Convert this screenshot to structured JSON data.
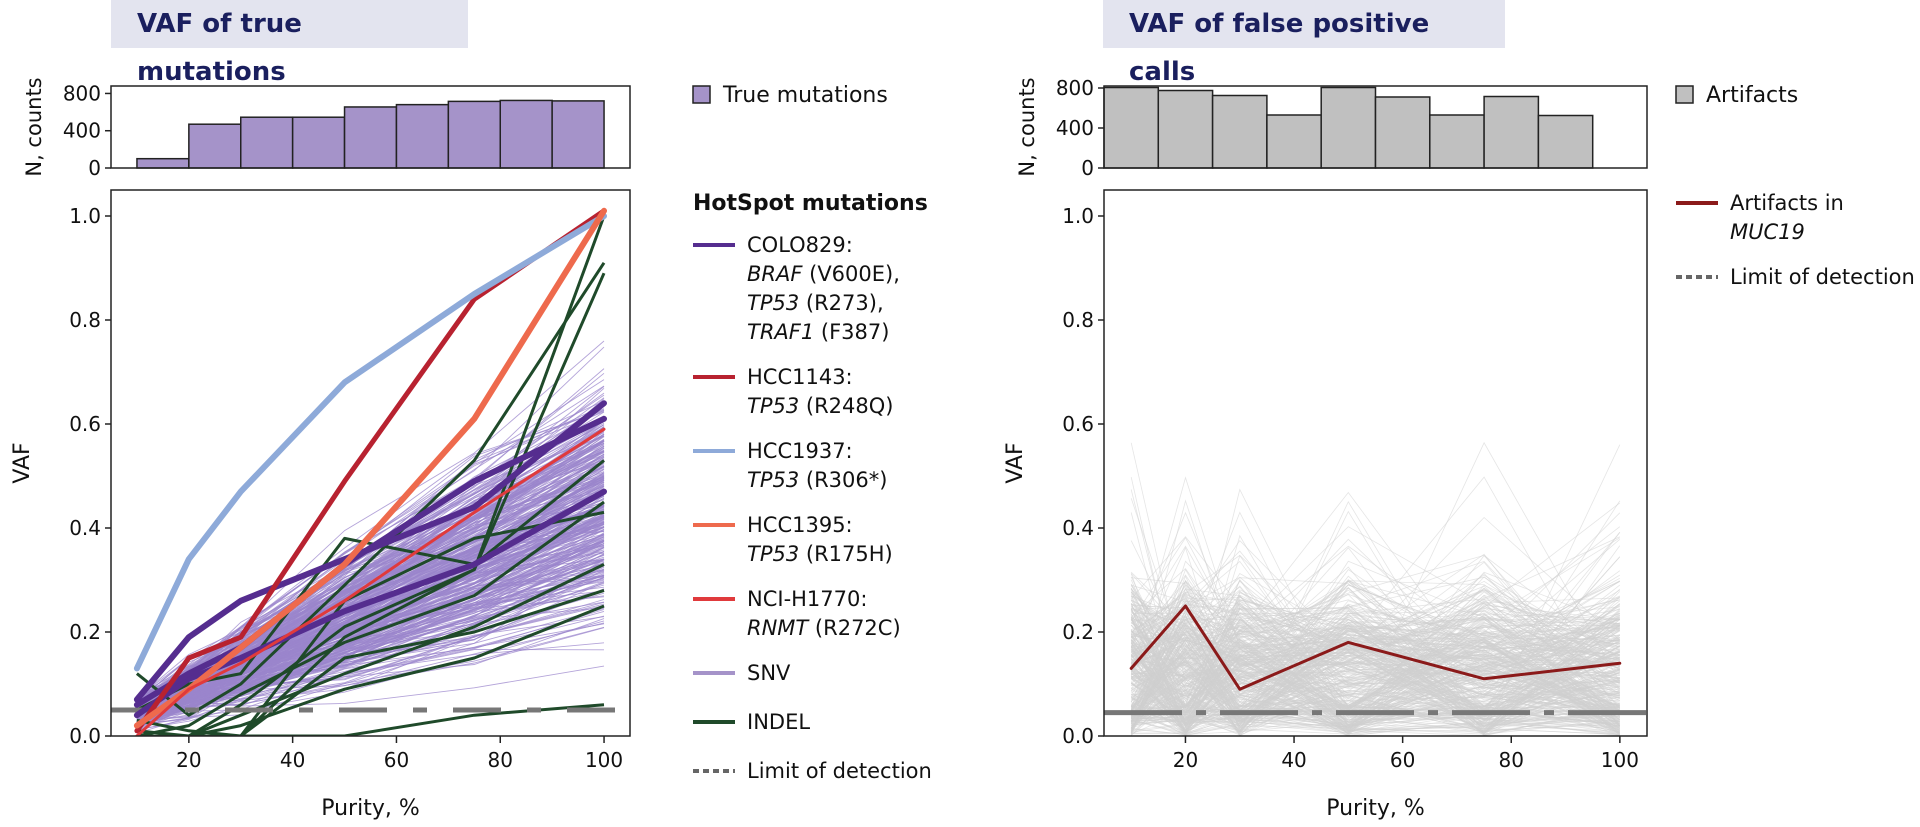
{
  "panels": {
    "left": {
      "title": "VAF of true mutations"
    },
    "right": {
      "title": "VAF of false positive calls"
    }
  },
  "chart_data": [
    {
      "type": "bar",
      "panel": "left-top",
      "ylabel": "N, counts",
      "yticks": [
        0,
        400,
        800
      ],
      "ylim": [
        0,
        880
      ],
      "xlim": [
        5,
        105
      ],
      "bar_x": [
        15,
        25,
        35,
        45,
        55,
        65,
        75,
        85,
        95
      ],
      "bar_width": 10,
      "values": [
        100,
        470,
        545,
        545,
        655,
        680,
        715,
        725,
        720
      ],
      "legend": "True mutations",
      "color": "#a593c9"
    },
    {
      "type": "line",
      "panel": "left-main",
      "xlabel": "Purity, %",
      "ylabel": "VAF",
      "xlim": [
        5,
        105
      ],
      "ylim": [
        0,
        1.05
      ],
      "xticks": [
        20,
        40,
        60,
        80,
        100
      ],
      "yticks": [
        0.0,
        0.2,
        0.4,
        0.6,
        0.8,
        1.0
      ],
      "ytick_labels": [
        "0.0",
        "0.2",
        "0.4",
        "0.6",
        "0.8",
        "1.0"
      ],
      "x": [
        10,
        20,
        30,
        50,
        75,
        100
      ],
      "legend_title": "HotSpot mutations",
      "series": [
        {
          "name": "COLO829: BRAF (V600E)",
          "color": "#552d8f",
          "width": 6,
          "values": [
            0.07,
            0.19,
            0.26,
            0.34,
            0.44,
            0.64
          ]
        },
        {
          "name": "COLO829: TP53 (R273)",
          "color": "#552d8f",
          "width": 6,
          "values": [
            0.04,
            0.11,
            0.15,
            0.24,
            0.33,
            0.47
          ]
        },
        {
          "name": "COLO829: TRAF1 (F387)",
          "color": "#552d8f",
          "width": 6,
          "values": [
            0.06,
            0.12,
            0.17,
            0.33,
            0.49,
            0.61
          ]
        },
        {
          "name": "HCC1143: TP53 (R248Q)",
          "color": "#b82230",
          "width": 5,
          "values": [
            0.01,
            0.15,
            0.19,
            0.49,
            0.84,
            1.01
          ]
        },
        {
          "name": "HCC1937: TP53 (R306*)",
          "color": "#8eaad9",
          "width": 6,
          "values": [
            0.13,
            0.34,
            0.47,
            0.68,
            0.85,
            1.0
          ]
        },
        {
          "name": "HCC1395: TP53 (R175H)",
          "color": "#ee6a4d",
          "width": 6,
          "values": [
            0.02,
            0.09,
            0.17,
            0.33,
            0.61,
            1.01
          ]
        },
        {
          "name": "NCI-H1770: RNMT (R272C)",
          "color": "#e03a3c",
          "width": 3,
          "values": [
            0.0,
            0.09,
            0.14,
            0.26,
            0.43,
            0.59
          ]
        }
      ],
      "indel_series": [
        [
          0.0,
          0.0,
          0.06,
          0.21,
          0.32,
          1.0
        ],
        [
          0.12,
          0.04,
          0.1,
          0.29,
          0.53,
          0.91
        ],
        [
          0.0,
          0.0,
          0.0,
          0.19,
          0.32,
          0.89
        ],
        [
          0.05,
          0.1,
          0.12,
          0.38,
          0.33,
          0.53
        ],
        [
          0.0,
          0.02,
          0.08,
          0.18,
          0.27,
          0.45
        ],
        [
          0.01,
          0.0,
          0.0,
          0.26,
          0.38,
          0.43
        ],
        [
          0.0,
          0.0,
          0.04,
          0.12,
          0.21,
          0.33
        ],
        [
          0.03,
          0.01,
          0.0,
          0.15,
          0.2,
          0.28
        ],
        [
          0.0,
          0.0,
          0.02,
          0.09,
          0.15,
          0.25
        ],
        [
          0.0,
          0.0,
          0.0,
          0.0,
          0.04,
          0.06
        ]
      ],
      "lod_value": 0.05,
      "legend_items": [
        {
          "label_lines": [
            [
              "COLO829:"
            ],
            [
              "BRAF",
              " (V600E),"
            ],
            [
              "TP53",
              " (R273),"
            ],
            [
              "TRAF1",
              " (F387)"
            ]
          ],
          "color": "#552d8f",
          "style": "solid"
        },
        {
          "label_lines": [
            [
              "HCC1143:"
            ],
            [
              "TP53",
              " (R248Q)"
            ]
          ],
          "color": "#b82230",
          "style": "solid"
        },
        {
          "label_lines": [
            [
              "HCC1937:"
            ],
            [
              "TP53",
              " (R306*)"
            ]
          ],
          "color": "#8eaad9",
          "style": "solid"
        },
        {
          "label_lines": [
            [
              "HCC1395:"
            ],
            [
              "TP53",
              " (R175H)"
            ]
          ],
          "color": "#ee6a4d",
          "style": "solid"
        },
        {
          "label_lines": [
            [
              "NCI-H1770:"
            ],
            [
              "RNMT",
              " (R272C)"
            ]
          ],
          "color": "#e03a3c",
          "style": "solid"
        },
        {
          "label_lines": [
            [
              "SNV"
            ]
          ],
          "color": "#a593c9",
          "style": "solid"
        },
        {
          "label_lines": [
            [
              "INDEL"
            ]
          ],
          "color": "#1f4a2a",
          "style": "solid"
        },
        {
          "label_lines": [
            [
              "Limit of detection"
            ]
          ],
          "color": "#666666",
          "style": "dashed"
        }
      ],
      "background_series": "SNV",
      "background_color": "#9b85cc"
    },
    {
      "type": "bar",
      "panel": "right-top",
      "ylabel": "N, counts",
      "yticks": [
        0,
        400,
        800
      ],
      "ylim": [
        0,
        820
      ],
      "xlim": [
        5,
        105
      ],
      "bar_x": [
        10,
        20,
        30,
        40,
        50,
        60,
        70,
        80,
        90
      ],
      "bar_width": 10,
      "values": [
        805,
        775,
        725,
        530,
        805,
        710,
        530,
        715,
        525
      ],
      "legend": "Artifacts",
      "color": "#c0c0c0"
    },
    {
      "type": "line",
      "panel": "right-main",
      "xlabel": "Purity, %",
      "ylabel": "VAF",
      "xlim": [
        5,
        105
      ],
      "ylim": [
        0,
        1.05
      ],
      "xticks": [
        20,
        40,
        60,
        80,
        100
      ],
      "yticks": [
        0.0,
        0.2,
        0.4,
        0.6,
        0.8,
        1.0
      ],
      "ytick_labels": [
        "0.0",
        "0.2",
        "0.4",
        "0.6",
        "0.8",
        "1.0"
      ],
      "x": [
        10,
        20,
        30,
        50,
        75,
        100
      ],
      "series": [
        {
          "name": "Artifacts in MUC19",
          "color": "#8b1a1a",
          "width": 3,
          "values": [
            0.13,
            0.25,
            0.09,
            0.18,
            0.11,
            0.14
          ]
        }
      ],
      "lod_value": 0.045,
      "legend_items": [
        {
          "label_lines": [
            [
              "Artifacts in"
            ],
            [
              "MUC19"
            ]
          ],
          "italic_line": 1,
          "color": "#8b1a1a",
          "style": "solid"
        },
        {
          "label_lines": [
            [
              "Limit of detection"
            ]
          ],
          "color": "#666666",
          "style": "dashed"
        }
      ],
      "background_series": "Artifacts",
      "background_color": "#cfcfcf"
    }
  ]
}
